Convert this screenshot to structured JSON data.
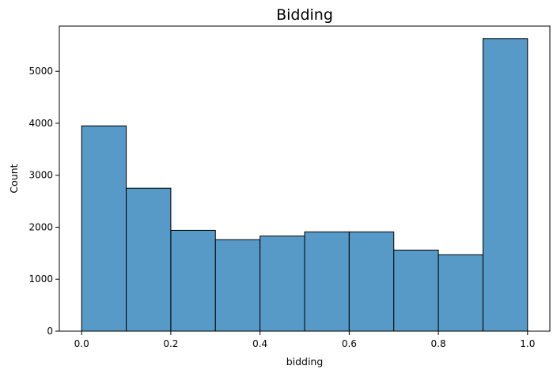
{
  "chart_data": {
    "type": "bar",
    "title": "Bidding",
    "xlabel": "bidding",
    "ylabel": "Count",
    "bin_edges": [
      0.0,
      0.1,
      0.2,
      0.3,
      0.4,
      0.5,
      0.6,
      0.7,
      0.8,
      0.9,
      1.0
    ],
    "values": [
      3950,
      2750,
      1940,
      1760,
      1830,
      1910,
      1910,
      1560,
      1470,
      5630
    ],
    "xlim": [
      -0.05,
      1.05
    ],
    "ylim": [
      0,
      5870
    ],
    "xticks": [
      0.0,
      0.2,
      0.4,
      0.6,
      0.8,
      1.0
    ],
    "xtick_labels": [
      "0.0",
      "0.2",
      "0.4",
      "0.6",
      "0.8",
      "1.0"
    ],
    "yticks": [
      0,
      1000,
      2000,
      3000,
      4000,
      5000
    ],
    "ytick_labels": [
      "0",
      "1000",
      "2000",
      "3000",
      "4000",
      "5000"
    ],
    "bar_color": "#5799c7",
    "edge_color": "#000000",
    "grid": false
  }
}
